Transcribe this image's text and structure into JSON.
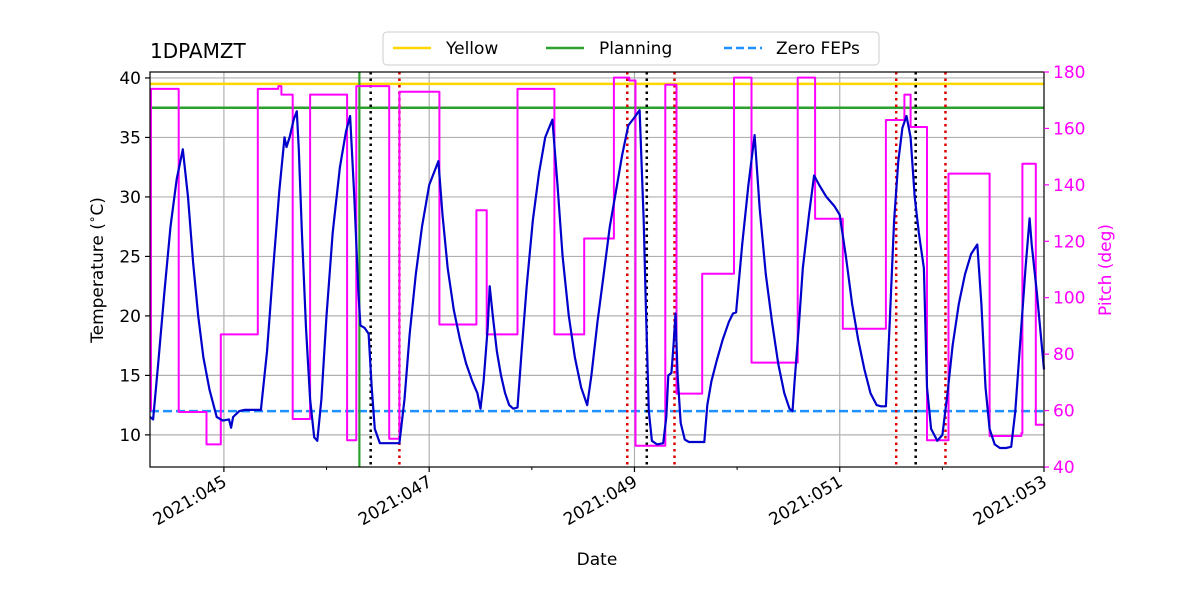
{
  "chart_data": {
    "type": "line",
    "title": "1DPAMZT",
    "xlabel": "Date",
    "ylabel": "Temperature ($^\\circ$C)",
    "ylabel_display": "Temperature (",
    "ylabel_unit": "C)",
    "y2label": "Pitch (deg)",
    "xlim": [
      44.28,
      52.99
    ],
    "ylim": [
      7.3,
      40.5
    ],
    "y2lim": [
      40,
      180
    ],
    "x_ticks": [
      {
        "value": 45,
        "label": "2021:045"
      },
      {
        "value": 47,
        "label": "2021:047"
      },
      {
        "value": 49,
        "label": "2021:049"
      },
      {
        "value": 51,
        "label": "2021:051"
      },
      {
        "value": 53,
        "label": "2021:053"
      }
    ],
    "x_minor_ticks": [
      44,
      46,
      48,
      50,
      52
    ],
    "y_ticks": [
      10,
      15,
      20,
      25,
      30,
      35,
      40
    ],
    "y2_ticks": [
      40,
      60,
      80,
      100,
      120,
      140,
      160,
      180
    ],
    "colors": {
      "temperature": "#0000cc",
      "pitch": "#ff00ff",
      "yellow": "#ffd700",
      "planning": "#2ca02c",
      "zero_feps": "#1e90ff",
      "red_markers": "#dd0000",
      "black_markers": "#000000",
      "grid": "#b0b0b0"
    },
    "legend": {
      "position": "top-center",
      "entries": [
        {
          "label": "Yellow",
          "style": "solid",
          "color": "#ffd700"
        },
        {
          "label": "Planning",
          "style": "solid",
          "color": "#2ca02c"
        },
        {
          "label": "Zero FEPs",
          "style": "dashed",
          "color": "#1e90ff"
        }
      ]
    },
    "limits": {
      "yellow": 39.5,
      "planning": 37.5,
      "zero_feps": 12.0
    },
    "vlines": {
      "planning_start": 46.32,
      "black_dotted": [
        46.43,
        49.12,
        51.74
      ],
      "red_dotted": [
        46.71,
        48.93,
        49.39,
        51.55,
        52.03
      ]
    },
    "series": [
      {
        "name": "1DPAMZT",
        "axis": "left",
        "points": [
          [
            44.28,
            11.5
          ],
          [
            44.31,
            11.3
          ],
          [
            44.36,
            16
          ],
          [
            44.42,
            22
          ],
          [
            44.48,
            27.5
          ],
          [
            44.54,
            31.5
          ],
          [
            44.6,
            34
          ],
          [
            44.65,
            30
          ],
          [
            44.7,
            24.5
          ],
          [
            44.75,
            20
          ],
          [
            44.8,
            16.5
          ],
          [
            44.86,
            13.8
          ],
          [
            44.93,
            11.5
          ],
          [
            44.99,
            11.2
          ],
          [
            45.05,
            11.3
          ],
          [
            45.07,
            10.6
          ],
          [
            45.09,
            11.5
          ],
          [
            45.15,
            12
          ],
          [
            45.2,
            12.1
          ],
          [
            45.36,
            12.1
          ],
          [
            45.42,
            17
          ],
          [
            45.48,
            24
          ],
          [
            45.54,
            30.5
          ],
          [
            45.59,
            35
          ],
          [
            45.61,
            34.2
          ],
          [
            45.64,
            35
          ],
          [
            45.68,
            36.5
          ],
          [
            45.71,
            37.2
          ],
          [
            45.73,
            34
          ],
          [
            45.76,
            27
          ],
          [
            45.8,
            19
          ],
          [
            45.84,
            13
          ],
          [
            45.88,
            9.8
          ],
          [
            45.91,
            9.5
          ],
          [
            45.95,
            13
          ],
          [
            46.0,
            20
          ],
          [
            46.06,
            27
          ],
          [
            46.13,
            32.5
          ],
          [
            46.19,
            35.5
          ],
          [
            46.23,
            36.8
          ],
          [
            46.27,
            30
          ],
          [
            46.31,
            22
          ],
          [
            46.33,
            19.2
          ],
          [
            46.37,
            19
          ],
          [
            46.41,
            18.5
          ],
          [
            46.44,
            14
          ],
          [
            46.47,
            10.5
          ],
          [
            46.52,
            9.3
          ],
          [
            46.71,
            9.3
          ],
          [
            46.76,
            13
          ],
          [
            46.81,
            18.5
          ],
          [
            46.87,
            23.5
          ],
          [
            46.93,
            27.5
          ],
          [
            47.0,
            31
          ],
          [
            47.09,
            33
          ],
          [
            47.13,
            28.5
          ],
          [
            47.18,
            24
          ],
          [
            47.24,
            20.5
          ],
          [
            47.3,
            18
          ],
          [
            47.36,
            16
          ],
          [
            47.42,
            14.5
          ],
          [
            47.47,
            13.5
          ],
          [
            47.5,
            12.2
          ],
          [
            47.53,
            14.5
          ],
          [
            47.57,
            19
          ],
          [
            47.59,
            22.5
          ],
          [
            47.62,
            20
          ],
          [
            47.66,
            17
          ],
          [
            47.7,
            15
          ],
          [
            47.74,
            13.5
          ],
          [
            47.78,
            12.5
          ],
          [
            47.82,
            12.2
          ],
          [
            47.86,
            12.3
          ],
          [
            47.9,
            17
          ],
          [
            47.95,
            22.5
          ],
          [
            48.01,
            28
          ],
          [
            48.07,
            32
          ],
          [
            48.13,
            35
          ],
          [
            48.2,
            36.5
          ],
          [
            48.25,
            31
          ],
          [
            48.3,
            25
          ],
          [
            48.36,
            20
          ],
          [
            48.42,
            16.5
          ],
          [
            48.48,
            14
          ],
          [
            48.54,
            12.5
          ],
          [
            48.58,
            15
          ],
          [
            48.64,
            19.5
          ],
          [
            48.7,
            23.5
          ],
          [
            48.76,
            27.5
          ],
          [
            48.82,
            30.5
          ],
          [
            48.88,
            33.5
          ],
          [
            48.94,
            36
          ],
          [
            49.01,
            36.8
          ],
          [
            49.05,
            37.3
          ],
          [
            49.09,
            28
          ],
          [
            49.11,
            21
          ],
          [
            49.14,
            12
          ],
          [
            49.17,
            9.5
          ],
          [
            49.22,
            9.2
          ],
          [
            49.28,
            9.3
          ],
          [
            49.31,
            11.5
          ],
          [
            49.33,
            15
          ],
          [
            49.36,
            15.2
          ],
          [
            49.38,
            17.5
          ],
          [
            49.4,
            20.2
          ],
          [
            49.42,
            15
          ],
          [
            49.45,
            11
          ],
          [
            49.49,
            9.6
          ],
          [
            49.53,
            9.4
          ],
          [
            49.68,
            9.4
          ],
          [
            49.71,
            12.5
          ],
          [
            49.75,
            14.5
          ],
          [
            49.8,
            16.2
          ],
          [
            49.86,
            18
          ],
          [
            49.92,
            19.5
          ],
          [
            49.96,
            20.2
          ],
          [
            49.99,
            20.3
          ],
          [
            50.05,
            26
          ],
          [
            50.11,
            31
          ],
          [
            50.17,
            35.2
          ],
          [
            50.22,
            29
          ],
          [
            50.28,
            23.5
          ],
          [
            50.34,
            19.5
          ],
          [
            50.4,
            16
          ],
          [
            50.46,
            13.5
          ],
          [
            50.51,
            12.2
          ],
          [
            50.54,
            12
          ],
          [
            50.56,
            14.5
          ],
          [
            50.6,
            19
          ],
          [
            50.64,
            24
          ],
          [
            50.7,
            28.5
          ],
          [
            50.75,
            31.8
          ],
          [
            50.8,
            31
          ],
          [
            50.87,
            30
          ],
          [
            50.95,
            29.2
          ],
          [
            51.0,
            28.5
          ],
          [
            51.06,
            25
          ],
          [
            51.12,
            21
          ],
          [
            51.18,
            18
          ],
          [
            51.24,
            15.5
          ],
          [
            51.3,
            13.5
          ],
          [
            51.36,
            12.5
          ],
          [
            51.4,
            12.4
          ],
          [
            51.45,
            12.4
          ],
          [
            51.49,
            20
          ],
          [
            51.53,
            28
          ],
          [
            51.57,
            33
          ],
          [
            51.61,
            35.8
          ],
          [
            51.65,
            36.8
          ],
          [
            51.69,
            35
          ],
          [
            51.73,
            30
          ],
          [
            51.77,
            27
          ],
          [
            51.82,
            24
          ],
          [
            51.85,
            14
          ],
          [
            51.89,
            10.5
          ],
          [
            51.95,
            9.5
          ],
          [
            52.0,
            10
          ],
          [
            52.05,
            13.5
          ],
          [
            52.1,
            17.5
          ],
          [
            52.16,
            21
          ],
          [
            52.22,
            23.5
          ],
          [
            52.28,
            25.2
          ],
          [
            52.34,
            26
          ],
          [
            52.38,
            21
          ],
          [
            52.42,
            14
          ],
          [
            52.46,
            10.5
          ],
          [
            52.51,
            9.2
          ],
          [
            52.56,
            8.9
          ],
          [
            52.62,
            8.9
          ],
          [
            52.67,
            9
          ],
          [
            52.71,
            12
          ],
          [
            52.76,
            18
          ],
          [
            52.81,
            24
          ],
          [
            52.85,
            28.2
          ],
          [
            52.87,
            26
          ],
          [
            52.92,
            22
          ],
          [
            52.99,
            15.5
          ]
        ]
      },
      {
        "name": "Pitch",
        "axis": "right",
        "points": [
          [
            44.28,
            60
          ],
          [
            44.29,
            60
          ],
          [
            44.29,
            174
          ],
          [
            44.56,
            174
          ],
          [
            44.56,
            59.5
          ],
          [
            44.83,
            59.5
          ],
          [
            44.83,
            48
          ],
          [
            44.97,
            48
          ],
          [
            44.97,
            87
          ],
          [
            45.33,
            87
          ],
          [
            45.33,
            174
          ],
          [
            45.53,
            174
          ],
          [
            45.53,
            175
          ],
          [
            45.56,
            175
          ],
          [
            45.56,
            172
          ],
          [
            45.67,
            172
          ],
          [
            45.67,
            57
          ],
          [
            45.84,
            57
          ],
          [
            45.84,
            172
          ],
          [
            46.2,
            172
          ],
          [
            46.2,
            49.5
          ],
          [
            46.29,
            49.5
          ],
          [
            46.29,
            175
          ],
          [
            46.61,
            175
          ],
          [
            46.61,
            50
          ],
          [
            46.71,
            50
          ],
          [
            46.71,
            173
          ],
          [
            47.1,
            173
          ],
          [
            47.1,
            90.5
          ],
          [
            47.46,
            90.5
          ],
          [
            47.46,
            131
          ],
          [
            47.56,
            131
          ],
          [
            47.56,
            87
          ],
          [
            47.86,
            87
          ],
          [
            47.86,
            174
          ],
          [
            48.22,
            174
          ],
          [
            48.22,
            87
          ],
          [
            48.51,
            87
          ],
          [
            48.51,
            121
          ],
          [
            48.8,
            121
          ],
          [
            48.8,
            178
          ],
          [
            48.95,
            178
          ],
          [
            48.95,
            177
          ],
          [
            49.01,
            177
          ],
          [
            49.01,
            47.5
          ],
          [
            49.3,
            47.5
          ],
          [
            49.3,
            175.5
          ],
          [
            49.41,
            175.5
          ],
          [
            49.41,
            66
          ],
          [
            49.66,
            66
          ],
          [
            49.66,
            108.5
          ],
          [
            49.97,
            108.5
          ],
          [
            49.97,
            178
          ],
          [
            50.14,
            178
          ],
          [
            50.14,
            77
          ],
          [
            50.59,
            77
          ],
          [
            50.59,
            178
          ],
          [
            50.76,
            178
          ],
          [
            50.76,
            128
          ],
          [
            51.03,
            128
          ],
          [
            51.03,
            89
          ],
          [
            51.45,
            89
          ],
          [
            51.45,
            163
          ],
          [
            51.63,
            163
          ],
          [
            51.63,
            172
          ],
          [
            51.69,
            172
          ],
          [
            51.69,
            160.5
          ],
          [
            51.85,
            160.5
          ],
          [
            51.85,
            49.5
          ],
          [
            52.06,
            49.5
          ],
          [
            52.06,
            144
          ],
          [
            52.46,
            144
          ],
          [
            52.46,
            51
          ],
          [
            52.77,
            51
          ],
          [
            52.77,
            52
          ],
          [
            52.78,
            52
          ],
          [
            52.78,
            147.5
          ],
          [
            52.91,
            147.5
          ],
          [
            52.91,
            55
          ],
          [
            52.99,
            55
          ]
        ]
      }
    ]
  }
}
